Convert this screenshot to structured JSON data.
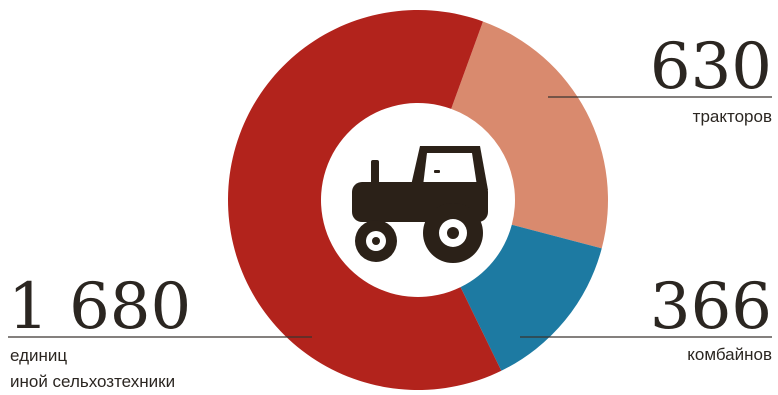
{
  "chart_data": {
    "type": "pie",
    "variant": "donut",
    "center_icon": "tractor-icon",
    "series": [
      {
        "value": 630,
        "value_label": "630",
        "label_lines": [
          "тракторов"
        ],
        "color": "#d98a6e"
      },
      {
        "value": 366,
        "value_label": "366",
        "label_lines": [
          "комбайнов"
        ],
        "color": "#1d7aa2"
      },
      {
        "value": 1680,
        "value_label": "1 680",
        "label_lines": [
          "единиц",
          "иной сельхозтехники"
        ],
        "color": "#b2231c"
      }
    ]
  }
}
